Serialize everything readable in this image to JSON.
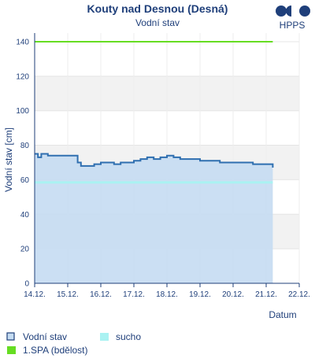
{
  "logo": {
    "text": "HPPS",
    "color": "#1f3f7a"
  },
  "chart_data": {
    "type": "line",
    "title": "Kouty nad Desnou (Desná)",
    "subtitle": "Vodní stav",
    "xlabel": "Datum",
    "ylabel": "Vodní stav [cm]",
    "x_ticks": [
      "14.12.",
      "15.12.",
      "16.12.",
      "17.12.",
      "18.12.",
      "19.12.",
      "20.12.",
      "21.12.",
      "22.12."
    ],
    "xlim": [
      0,
      8
    ],
    "ylim": [
      0,
      145
    ],
    "y_ticks": [
      0,
      20,
      40,
      60,
      80,
      100,
      120,
      140
    ],
    "grid": "horizontal bands",
    "series": [
      {
        "name": "Vodní stav",
        "type": "area",
        "color": "#2f6fb0",
        "fill": "#c5dcf2",
        "x": [
          0,
          0.1,
          0.2,
          0.3,
          0.4,
          0.6,
          0.8,
          1.0,
          1.2,
          1.3,
          1.4,
          1.5,
          1.6,
          1.7,
          1.8,
          2.0,
          2.2,
          2.4,
          2.6,
          2.8,
          3.0,
          3.2,
          3.4,
          3.6,
          3.8,
          4.0,
          4.2,
          4.4,
          4.6,
          4.8,
          5.0,
          5.2,
          5.4,
          5.6,
          5.8,
          6.0,
          6.2,
          6.4,
          6.6,
          6.8,
          7.0,
          7.1,
          7.2
        ],
        "y": [
          75,
          73,
          75,
          75,
          74,
          74,
          74,
          74,
          74,
          70,
          68,
          68,
          68,
          68,
          69,
          70,
          70,
          69,
          70,
          70,
          71,
          72,
          73,
          72,
          73,
          74,
          73,
          72,
          72,
          72,
          71,
          71,
          71,
          70,
          70,
          70,
          70,
          70,
          69,
          69,
          69,
          69,
          67
        ]
      },
      {
        "name": "sucho",
        "type": "line",
        "color": "#aaf2f2",
        "x": [
          0,
          7.2
        ],
        "y": [
          58.5,
          58.5
        ]
      },
      {
        "name": "1.SPA (bdělost)",
        "type": "line",
        "color": "#66dd22",
        "x": [
          0,
          7.2
        ],
        "y": [
          140,
          140
        ]
      }
    ],
    "legend": {
      "placement": "bottom",
      "items": [
        {
          "label": "Vodní stav",
          "symbol": "area"
        },
        {
          "label": "sucho",
          "symbol": "line"
        },
        {
          "label": "1.SPA (bdělost)",
          "symbol": "line"
        }
      ]
    }
  }
}
